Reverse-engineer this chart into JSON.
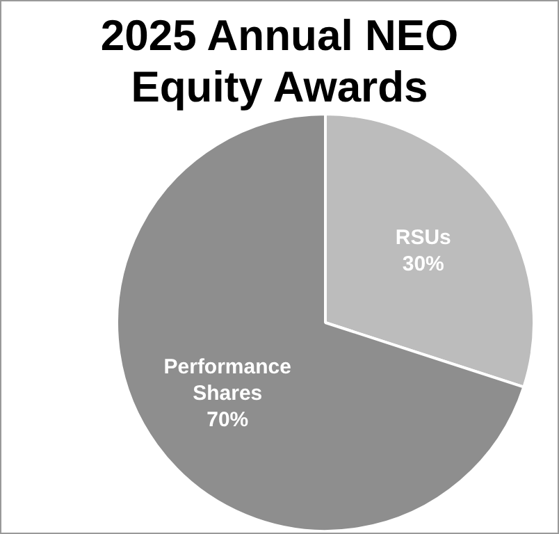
{
  "chart_data": {
    "type": "pie",
    "title": "2025 Annual NEO Equity Awards",
    "categories": [
      "RSUs",
      "Performance Shares"
    ],
    "values": [
      30,
      70
    ],
    "colors": [
      "#bcbcbc",
      "#8e8e8e"
    ],
    "value_labels": [
      "30%",
      "70%"
    ],
    "legend": false
  }
}
